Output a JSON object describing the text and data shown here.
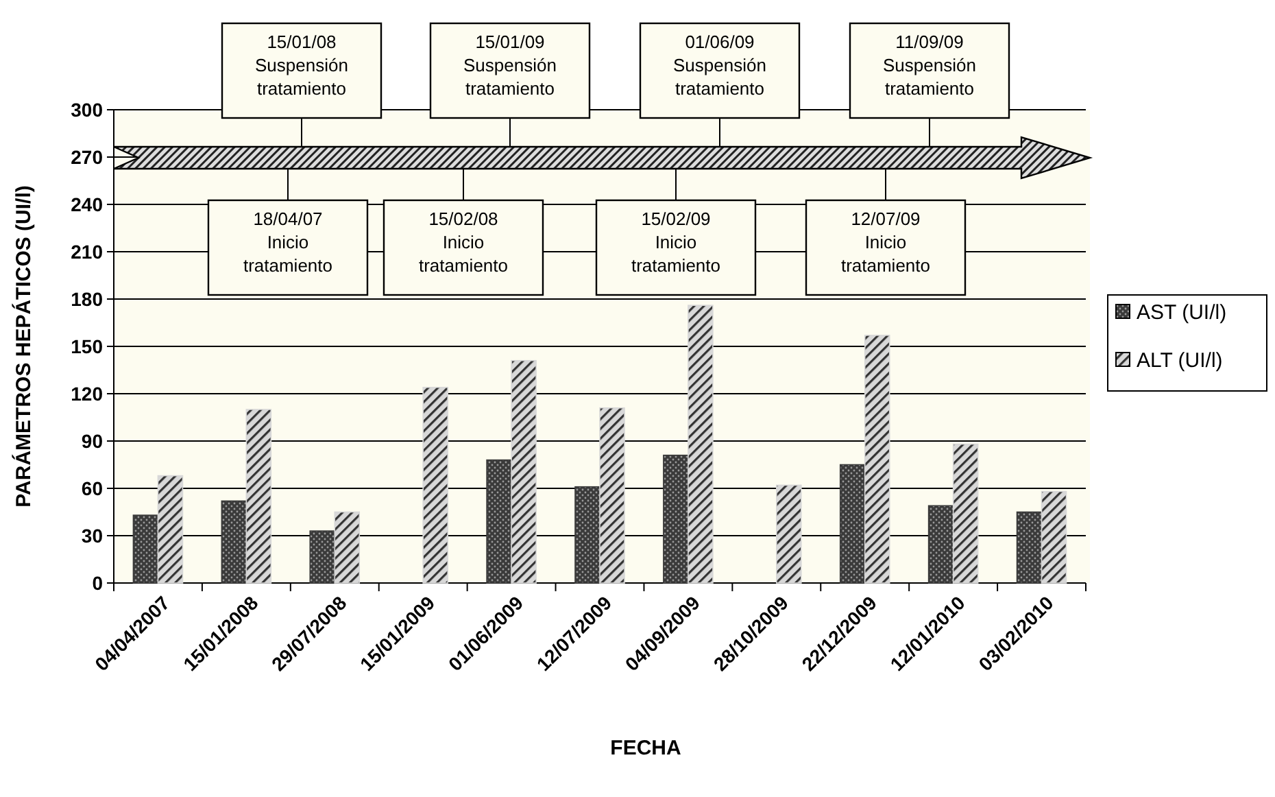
{
  "chart_data": {
    "type": "bar",
    "xlabel": "FECHA",
    "ylabel": "PARÁMETROS HEPÁTICOS (UI/l)",
    "categories": [
      "04/04/2007",
      "15/01/2008",
      "29/07/2008",
      "15/01/2009",
      "01/06/2009",
      "12/07/2009",
      "04/09/2009",
      "28/10/2009",
      "22/12/2009",
      "12/01/2010",
      "03/02/2010"
    ],
    "series": [
      {
        "name": "AST (UI/l)",
        "color": "#3a3a3a",
        "values": [
          43,
          52,
          33,
          null,
          78,
          61,
          81,
          null,
          75,
          49,
          45
        ]
      },
      {
        "name": "ALT (UI/l)",
        "color": "#d8d8d8",
        "values": [
          68,
          110,
          45,
          124,
          141,
          111,
          176,
          62,
          157,
          88,
          58
        ]
      }
    ],
    "ylim": [
      0,
      300
    ],
    "yticks": [
      0,
      30,
      60,
      90,
      120,
      150,
      180,
      210,
      240,
      270,
      300
    ],
    "grid": "y",
    "legend": "right",
    "annotations": [
      "18/04/07\nInicio\ntratamiento",
      "15/01/08\nSuspensión\ntratamiento",
      "15/02/08\nInicio\ntratamiento",
      "15/01/09\nSuspensión\ntratamiento",
      "15/02/09\nInicio\ntratamiento",
      "01/06/09\nSuspensión\ntratamiento",
      "12/07/09\nInicio\ntratamiento",
      "11/09/09\nSuspensión\ntratamiento"
    ]
  }
}
